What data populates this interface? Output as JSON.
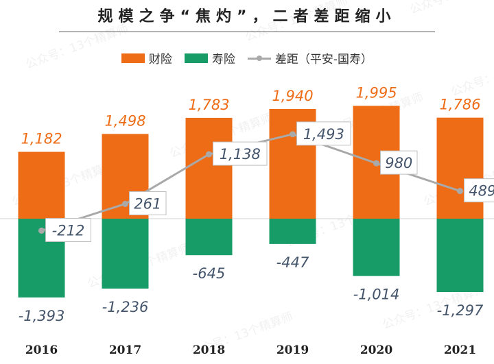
{
  "title": "规模之争“焦灼”，二者差距缩小",
  "legend": [
    {
      "name": "财险",
      "color": "#ee6c16"
    },
    {
      "name": "寿险",
      "color": "#179b67"
    },
    {
      "name": "差距（平安-国寿）",
      "color": "#a9a9a9"
    }
  ],
  "chart_data": {
    "type": "bar",
    "categories": [
      "2016",
      "2017",
      "2018",
      "2019",
      "2020",
      "2021"
    ],
    "series": [
      {
        "name": "财险",
        "values": [
          1182,
          1498,
          1783,
          1940,
          1995,
          1786
        ],
        "color": "#ee6c16"
      },
      {
        "name": "寿险",
        "values": [
          -1393,
          -1236,
          -645,
          -447,
          -1014,
          -1297
        ],
        "color": "#179b67"
      },
      {
        "name": "差距（平安-国寿）",
        "type": "line",
        "values": [
          -212,
          261,
          1138,
          1493,
          980,
          489
        ],
        "color": "#a9a9a9"
      }
    ],
    "value_labels": {
      "财险": [
        "1,182",
        "1,498",
        "1,783",
        "1,940",
        "1,995",
        "1,786"
      ],
      "寿险": [
        "-1,393",
        "-1,236",
        "-645",
        "-447",
        "-1,014",
        "-1,297"
      ],
      "差距（平安-国寿）": [
        "-212",
        "261",
        "1,138",
        "1,493",
        "980",
        "489"
      ]
    },
    "legend_position": "top",
    "grid": false
  },
  "watermark": "公众号：13个精算师"
}
